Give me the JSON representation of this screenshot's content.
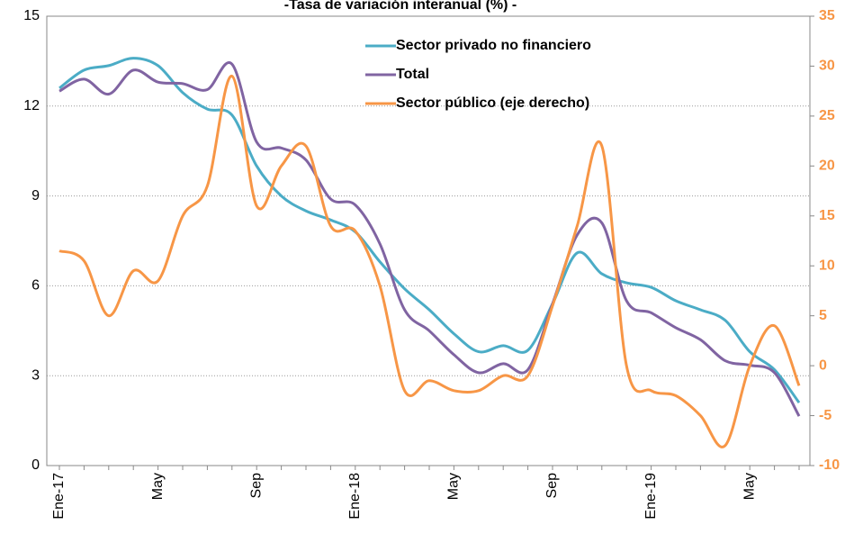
{
  "chart_data": {
    "type": "line",
    "title": "-Tasa de variación interanual (%) -",
    "categories": [
      "Ene-17",
      null,
      null,
      null,
      "May",
      null,
      null,
      null,
      "Sep",
      null,
      null,
      null,
      "Ene-18",
      null,
      null,
      null,
      "May",
      null,
      null,
      null,
      "Sep",
      null,
      null,
      null,
      "Ene-19",
      null,
      null,
      null,
      "May",
      null,
      null
    ],
    "ylim": [
      0,
      15
    ],
    "yticks": [
      0,
      3,
      6,
      9,
      12,
      15
    ],
    "y2lim": [
      -10,
      35
    ],
    "y2ticks": [
      -10,
      -5,
      0,
      5,
      10,
      15,
      20,
      25,
      30,
      35
    ],
    "grid": true,
    "legend": "top",
    "series": [
      {
        "name": "Sector privado no financiero",
        "color": "#4bacc6",
        "values": [
          12.6,
          13.2,
          13.35,
          13.6,
          13.35,
          12.45,
          11.9,
          11.7,
          10.0,
          9.0,
          8.5,
          8.2,
          7.8,
          6.8,
          5.9,
          5.2,
          4.4,
          3.8,
          4.0,
          3.85,
          5.4,
          7.1,
          6.4,
          6.1,
          5.95,
          5.5,
          5.2,
          4.85,
          3.8,
          3.2,
          2.1
        ]
      },
      {
        "name": "Total",
        "color": "#8064a2",
        "values": [
          12.5,
          12.9,
          12.4,
          13.2,
          12.8,
          12.75,
          12.55,
          13.4,
          10.8,
          10.6,
          10.2,
          8.9,
          8.7,
          7.4,
          5.2,
          4.5,
          3.7,
          3.1,
          3.4,
          3.2,
          5.4,
          7.7,
          8.1,
          5.5,
          5.1,
          4.6,
          4.2,
          3.5,
          3.35,
          3.1,
          1.65
        ]
      },
      {
        "name": "Sector público (eje derecho)",
        "color": "#f79646",
        "axis": "y2",
        "values": [
          11.5,
          10.5,
          5,
          9.5,
          8.5,
          15,
          18,
          29,
          16,
          20,
          22,
          14,
          13.5,
          8,
          -2.5,
          -1.5,
          -2.5,
          -2.5,
          -1,
          -1,
          6,
          14,
          22,
          0,
          -2.5,
          -3,
          -5,
          -8,
          0,
          4,
          -2
        ]
      }
    ]
  }
}
